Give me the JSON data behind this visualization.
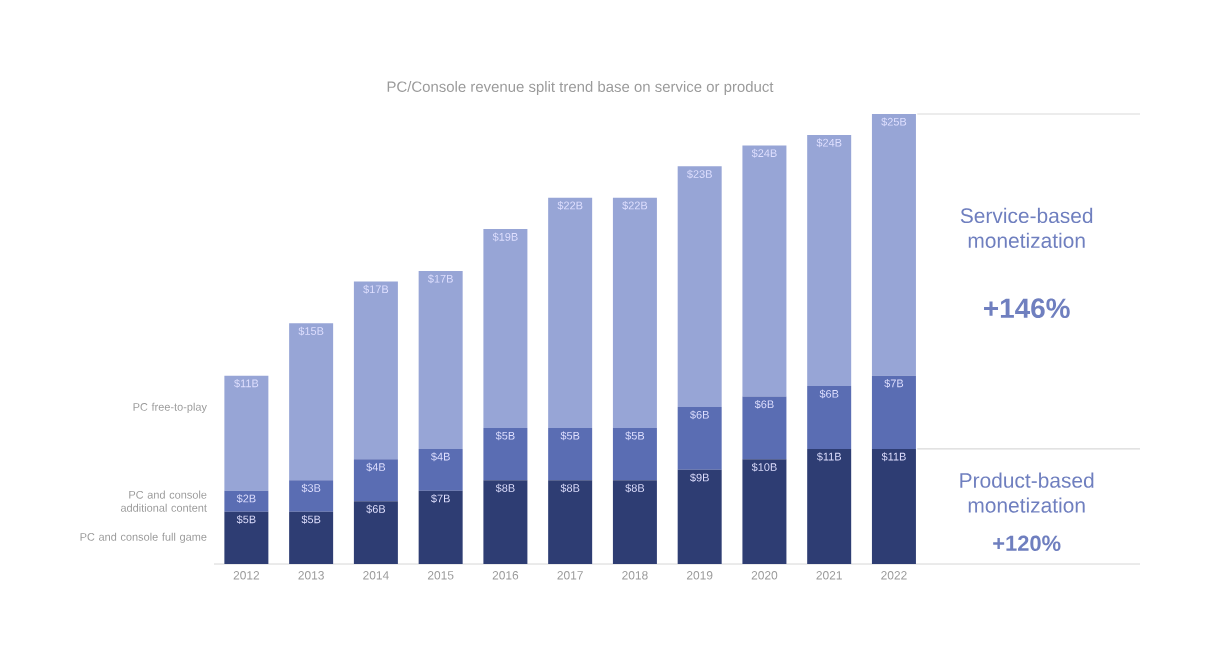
{
  "chart_data": {
    "type": "bar",
    "stacked": true,
    "title": "PC/Console revenue split trend base on service or product",
    "categories": [
      "2012",
      "2013",
      "2014",
      "2015",
      "2016",
      "2017",
      "2018",
      "2019",
      "2020",
      "2021",
      "2022"
    ],
    "series": [
      {
        "name": "PC and console full game",
        "color": "#2e3d73",
        "values": [
          5,
          5,
          6,
          7,
          8,
          8,
          8,
          9,
          10,
          11,
          11
        ],
        "value_labels": [
          "$5B",
          "$5B",
          "$6B",
          "$7B",
          "$8B",
          "$8B",
          "$8B",
          "$9B",
          "$10B",
          "$11B",
          "$11B"
        ]
      },
      {
        "name": "PC and console additional content",
        "color": "#5a6db3",
        "values": [
          2,
          3,
          4,
          4,
          5,
          5,
          5,
          6,
          6,
          6,
          7
        ],
        "value_labels": [
          "$2B",
          "$3B",
          "$4B",
          "$4B",
          "$5B",
          "$5B",
          "$5B",
          "$6B",
          "$6B",
          "$6B",
          "$7B"
        ]
      },
      {
        "name": "PC free-to-play",
        "color": "#97a5d6",
        "values": [
          11,
          15,
          17,
          17,
          19,
          22,
          22,
          23,
          24,
          24,
          25
        ],
        "value_labels": [
          "$11B",
          "$15B",
          "$17B",
          "$17B",
          "$19B",
          "$22B",
          "$22B",
          "$23B",
          "$24B",
          "$24B",
          "$25B"
        ]
      }
    ],
    "ylim": [
      0,
      43
    ],
    "legend": "left",
    "annotations": [
      "Service-based monetization",
      "+146%",
      "Product-based monetization",
      "+120%"
    ]
  }
}
